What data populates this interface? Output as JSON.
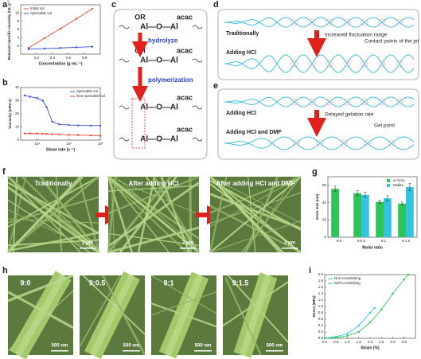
{
  "chart_data": [
    {
      "panel": "a",
      "type": "line",
      "xlabel": "Concentration (g mL⁻¹)",
      "ylabel": "Reduced specific viscosity (mL g⁻¹)",
      "xlim": [
        0,
        1.0
      ],
      "xticks": [
        0.2,
        0.4,
        0.6,
        0.8
      ],
      "ylim": [
        0,
        12
      ],
      "yticks": [
        2,
        4,
        6,
        8,
        10
      ],
      "legend": "upper left",
      "series": [
        {
          "name": "Initial sol",
          "color": "#e8443a",
          "x": [
            0.1,
            0.3,
            0.5,
            0.7,
            0.9
          ],
          "values": [
            1.5,
            3.9,
            6.2,
            8.6,
            11.0
          ]
        },
        {
          "name": "Spinnable sol",
          "color": "#3a4fd0",
          "x": [
            0.1,
            0.3,
            0.5,
            0.7,
            0.9
          ],
          "values": [
            1.2,
            1.35,
            1.5,
            1.65,
            1.8
          ]
        }
      ]
    },
    {
      "panel": "b",
      "type": "line",
      "log_x": true,
      "xlabel": "Shear rate (s⁻¹)",
      "ylabel": "Viscosity (mPa·s)",
      "xlim": [
        3,
        1000
      ],
      "xticks": [
        {
          "value": 10,
          "label": "10¹"
        },
        {
          "value": 100,
          "label": "10²"
        },
        {
          "value": 1000,
          "label": "10³"
        }
      ],
      "ylim": [
        0,
        40
      ],
      "yticks": [
        0,
        10,
        20,
        30,
        40
      ],
      "legend": "upper right",
      "series": [
        {
          "name": "Spinnable sol",
          "color": "#3a4fd0",
          "x": [
            4,
            6,
            10,
            15,
            20,
            30,
            50,
            100,
            200,
            500,
            1000
          ],
          "values": [
            34,
            33,
            32,
            30,
            25,
            14,
            12,
            11.5,
            11.2,
            11,
            11
          ]
        },
        {
          "name": "Non-spinnable sol",
          "color": "#e8443a",
          "x": [
            4,
            6,
            10,
            15,
            20,
            30,
            50,
            100,
            200,
            500,
            1000
          ],
          "values": [
            5,
            5,
            5,
            4.8,
            4.7,
            4.5,
            4.3,
            4,
            3.8,
            3.5,
            3.3
          ]
        }
      ]
    },
    {
      "panel": "g",
      "type": "bar",
      "xlabel": "Molar ratio",
      "ylabel": "Grain size (nm)",
      "categories": [
        "9:0",
        "9:0.5",
        "9:1",
        "9:1.5"
      ],
      "ylim": [
        0,
        70
      ],
      "yticks": [
        0,
        20,
        40,
        60
      ],
      "legend": "upper right",
      "series": [
        {
          "name": "α-Al₂O₃",
          "color": "#2fc45a",
          "values": [
            56,
            51,
            41,
            39
          ],
          "errors": [
            3,
            3,
            2,
            2
          ]
        },
        {
          "name": "Mullite",
          "color": "#35c3e0",
          "values": [
            null,
            49,
            45,
            58
          ],
          "errors": [
            null,
            3,
            3,
            4
          ]
        }
      ]
    },
    {
      "panel": "i",
      "type": "line",
      "xlabel": "Strain (%)",
      "ylabel": "Stress (MPa)",
      "xlim": [
        0,
        4.0
      ],
      "xticks": [
        {
          "value": 0,
          "label": "0.0"
        },
        0.5,
        {
          "value": 1,
          "label": "1.0"
        },
        1.5,
        {
          "value": 2,
          "label": "2.0"
        },
        2.5,
        {
          "value": 3,
          "label": "3.0"
        },
        3.5
      ],
      "ylim": [
        0,
        2.0
      ],
      "yticks": [
        {
          "value": 0,
          "label": "0.0"
        },
        0.2,
        0.4,
        0.6,
        0.8,
        {
          "value": 1,
          "label": "1.0"
        },
        1.2,
        1.4,
        1.6,
        1.8,
        {
          "value": 2,
          "label": "2.0"
        }
      ],
      "legend": "upper left",
      "series": [
        {
          "name": "Non-crosslinking",
          "color": "#35c3e0",
          "x": [
            0,
            0.5,
            1.0,
            1.5,
            2.0,
            2.2
          ],
          "values": [
            0,
            0.05,
            0.15,
            0.4,
            0.8,
            0.95
          ]
        },
        {
          "name": "Self-crosslinking",
          "color": "#2fc45a",
          "x": [
            0,
            0.5,
            1,
            1.5,
            2,
            2.5,
            3,
            3.5,
            3.7
          ],
          "values": [
            0,
            0.02,
            0.08,
            0.2,
            0.5,
            0.9,
            1.4,
            1.85,
            2.0
          ]
        }
      ]
    }
  ],
  "scheme_c": {
    "panel": "c",
    "rows": [
      {
        "labels": [
          "OR",
          "acac"
        ],
        "chain": "Al—O—Al"
      },
      {
        "labels": [
          "OH",
          "acac"
        ],
        "chain": "Al—O—Al"
      },
      {
        "labels": [
          "acac"
        ],
        "chain": "Al—O—Al"
      },
      {
        "labels": [
          "acac"
        ],
        "chain": "Al—O—Al"
      }
    ],
    "steps": [
      "hydrolyze",
      "polymerization"
    ]
  },
  "scheme_d": {
    "panel": "d",
    "rows": [
      "Traditionally",
      "Adding HCl"
    ],
    "notes": [
      "Increased fluctuation range",
      "Contact points of the jet"
    ]
  },
  "scheme_e": {
    "panel": "e",
    "rows": [
      "Adding HCl",
      "Adding HCl and DMF"
    ],
    "notes": [
      "Delayed gelation rate",
      "Gel point"
    ]
  },
  "sem_f": {
    "panel": "f",
    "images": [
      {
        "caption": "Traditionally",
        "scale": "2 μm"
      },
      {
        "caption": "After adding HCl",
        "scale": "2 μm"
      },
      {
        "caption": "After adding HCl and DMF",
        "scale": "2 μm"
      }
    ]
  },
  "sem_h": {
    "panel": "h",
    "images": [
      {
        "caption": "9:0",
        "scale": "500 nm"
      },
      {
        "caption": "9:0.5",
        "scale": "500 nm"
      },
      {
        "caption": "9:1",
        "scale": "500 nm"
      },
      {
        "caption": "9:1.5",
        "scale": "500 nm"
      }
    ]
  }
}
